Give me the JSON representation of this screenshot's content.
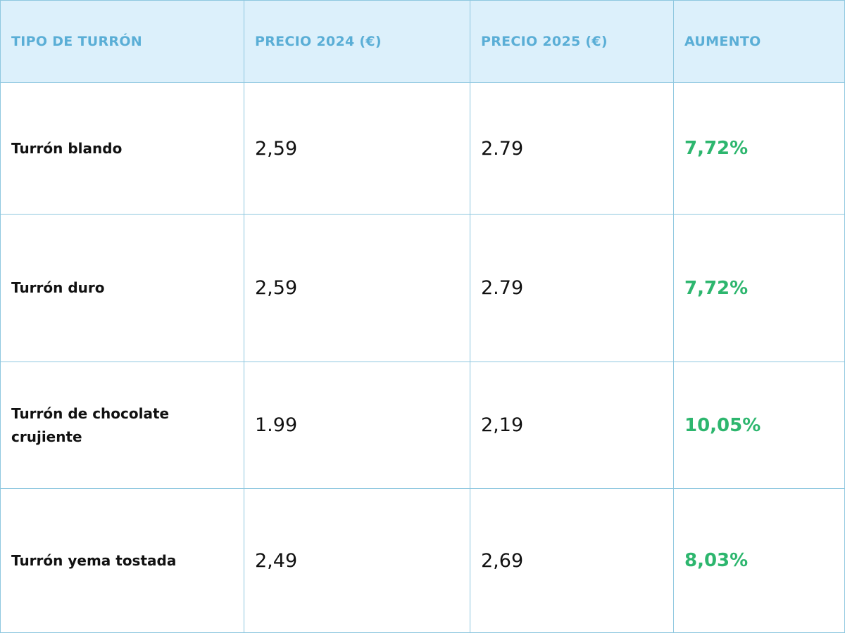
{
  "table": {
    "header": [
      "TIPO DE TURRÓN",
      "PRECIO 2024 (€)",
      "PRECIO 2025 (€)",
      "AUMENTO"
    ],
    "rows": [
      [
        "Turrón blando",
        "2,59",
        "2.79",
        "7,72%"
      ],
      [
        "Turrón duro",
        "2,59",
        "2.79",
        "7,72%"
      ],
      [
        "Turrón de chocolate crujiente",
        "1.99",
        "2,19",
        "10,05%"
      ],
      [
        "Turrón yema tostada",
        "2,49",
        "2,69",
        "8,03%"
      ]
    ]
  }
}
